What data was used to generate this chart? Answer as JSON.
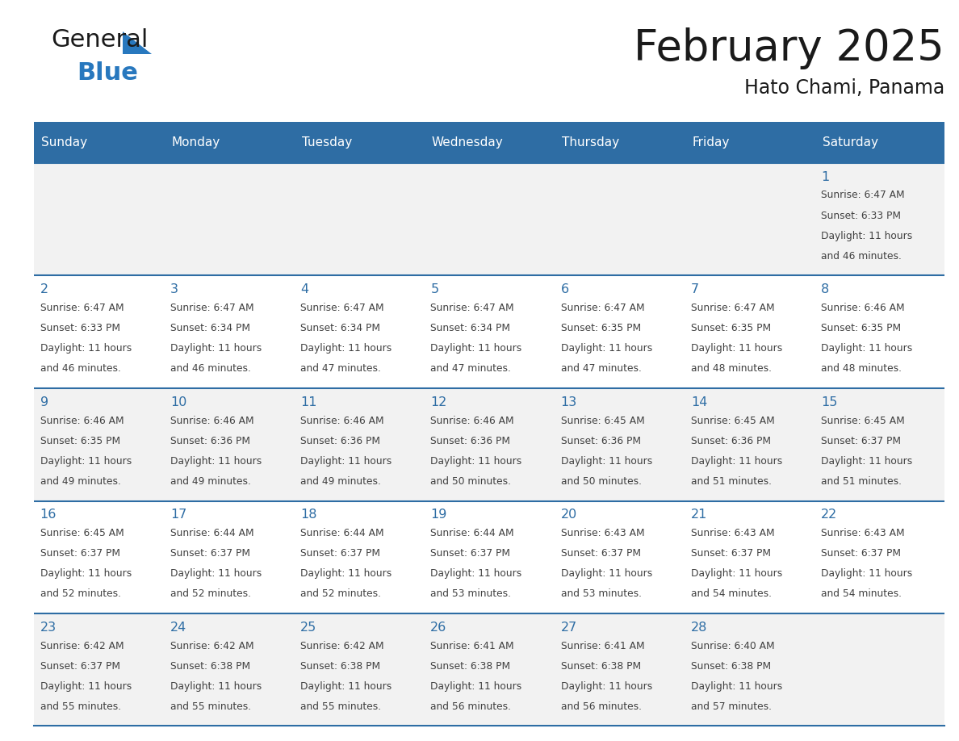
{
  "title": "February 2025",
  "subtitle": "Hato Chami, Panama",
  "header_color": "#2E6DA4",
  "header_text_color": "#FFFFFF",
  "day_headers": [
    "Sunday",
    "Monday",
    "Tuesday",
    "Wednesday",
    "Thursday",
    "Friday",
    "Saturday"
  ],
  "background_color": "#FFFFFF",
  "cell_bg_light": "#F2F2F2",
  "cell_bg_white": "#FFFFFF",
  "day_number_color": "#2E6DA4",
  "text_color": "#404040",
  "grid_color": "#2E6DA4",
  "logo_general_color": "#1A1A1A",
  "logo_blue_color": "#2878BE",
  "calendar_data": [
    [
      null,
      null,
      null,
      null,
      null,
      null,
      {
        "day": 1,
        "sunrise": "6:47 AM",
        "sunset": "6:33 PM",
        "daylight": "11 hours\nand 46 minutes."
      }
    ],
    [
      {
        "day": 2,
        "sunrise": "6:47 AM",
        "sunset": "6:33 PM",
        "daylight": "11 hours\nand 46 minutes."
      },
      {
        "day": 3,
        "sunrise": "6:47 AM",
        "sunset": "6:34 PM",
        "daylight": "11 hours\nand 46 minutes."
      },
      {
        "day": 4,
        "sunrise": "6:47 AM",
        "sunset": "6:34 PM",
        "daylight": "11 hours\nand 47 minutes."
      },
      {
        "day": 5,
        "sunrise": "6:47 AM",
        "sunset": "6:34 PM",
        "daylight": "11 hours\nand 47 minutes."
      },
      {
        "day": 6,
        "sunrise": "6:47 AM",
        "sunset": "6:35 PM",
        "daylight": "11 hours\nand 47 minutes."
      },
      {
        "day": 7,
        "sunrise": "6:47 AM",
        "sunset": "6:35 PM",
        "daylight": "11 hours\nand 48 minutes."
      },
      {
        "day": 8,
        "sunrise": "6:46 AM",
        "sunset": "6:35 PM",
        "daylight": "11 hours\nand 48 minutes."
      }
    ],
    [
      {
        "day": 9,
        "sunrise": "6:46 AM",
        "sunset": "6:35 PM",
        "daylight": "11 hours\nand 49 minutes."
      },
      {
        "day": 10,
        "sunrise": "6:46 AM",
        "sunset": "6:36 PM",
        "daylight": "11 hours\nand 49 minutes."
      },
      {
        "day": 11,
        "sunrise": "6:46 AM",
        "sunset": "6:36 PM",
        "daylight": "11 hours\nand 49 minutes."
      },
      {
        "day": 12,
        "sunrise": "6:46 AM",
        "sunset": "6:36 PM",
        "daylight": "11 hours\nand 50 minutes."
      },
      {
        "day": 13,
        "sunrise": "6:45 AM",
        "sunset": "6:36 PM",
        "daylight": "11 hours\nand 50 minutes."
      },
      {
        "day": 14,
        "sunrise": "6:45 AM",
        "sunset": "6:36 PM",
        "daylight": "11 hours\nand 51 minutes."
      },
      {
        "day": 15,
        "sunrise": "6:45 AM",
        "sunset": "6:37 PM",
        "daylight": "11 hours\nand 51 minutes."
      }
    ],
    [
      {
        "day": 16,
        "sunrise": "6:45 AM",
        "sunset": "6:37 PM",
        "daylight": "11 hours\nand 52 minutes."
      },
      {
        "day": 17,
        "sunrise": "6:44 AM",
        "sunset": "6:37 PM",
        "daylight": "11 hours\nand 52 minutes."
      },
      {
        "day": 18,
        "sunrise": "6:44 AM",
        "sunset": "6:37 PM",
        "daylight": "11 hours\nand 52 minutes."
      },
      {
        "day": 19,
        "sunrise": "6:44 AM",
        "sunset": "6:37 PM",
        "daylight": "11 hours\nand 53 minutes."
      },
      {
        "day": 20,
        "sunrise": "6:43 AM",
        "sunset": "6:37 PM",
        "daylight": "11 hours\nand 53 minutes."
      },
      {
        "day": 21,
        "sunrise": "6:43 AM",
        "sunset": "6:37 PM",
        "daylight": "11 hours\nand 54 minutes."
      },
      {
        "day": 22,
        "sunrise": "6:43 AM",
        "sunset": "6:37 PM",
        "daylight": "11 hours\nand 54 minutes."
      }
    ],
    [
      {
        "day": 23,
        "sunrise": "6:42 AM",
        "sunset": "6:37 PM",
        "daylight": "11 hours\nand 55 minutes."
      },
      {
        "day": 24,
        "sunrise": "6:42 AM",
        "sunset": "6:38 PM",
        "daylight": "11 hours\nand 55 minutes."
      },
      {
        "day": 25,
        "sunrise": "6:42 AM",
        "sunset": "6:38 PM",
        "daylight": "11 hours\nand 55 minutes."
      },
      {
        "day": 26,
        "sunrise": "6:41 AM",
        "sunset": "6:38 PM",
        "daylight": "11 hours\nand 56 minutes."
      },
      {
        "day": 27,
        "sunrise": "6:41 AM",
        "sunset": "6:38 PM",
        "daylight": "11 hours\nand 56 minutes."
      },
      {
        "day": 28,
        "sunrise": "6:40 AM",
        "sunset": "6:38 PM",
        "daylight": "11 hours\nand 57 minutes."
      },
      null
    ]
  ]
}
